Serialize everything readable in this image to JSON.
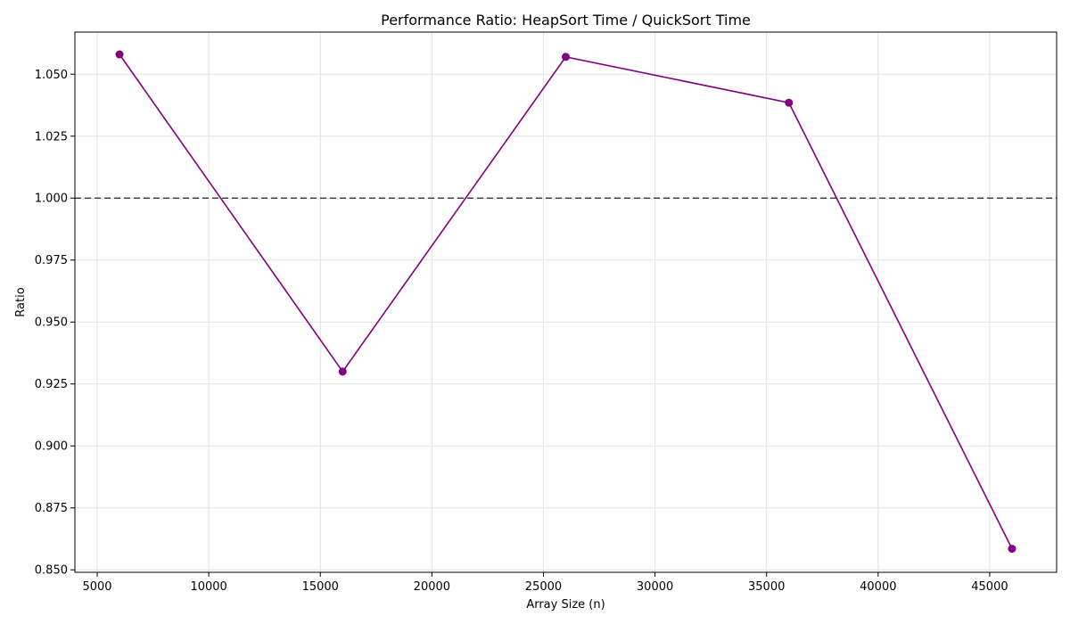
{
  "chart_data": {
    "type": "line",
    "title": "Performance Ratio: HeapSort Time / QuickSort Time",
    "xlabel": "Array Size (n)",
    "ylabel": "Ratio",
    "xlim": [
      4000,
      48000
    ],
    "ylim": [
      0.849,
      1.067
    ],
    "x_ticks": [
      5000,
      10000,
      15000,
      20000,
      25000,
      30000,
      35000,
      40000,
      45000
    ],
    "y_ticks": [
      0.85,
      0.875,
      0.9,
      0.925,
      0.95,
      0.975,
      1.0,
      1.025,
      1.05
    ],
    "y_tick_labels": [
      "0.850",
      "0.875",
      "0.900",
      "0.925",
      "0.950",
      "0.975",
      "1.000",
      "1.025",
      "1.050"
    ],
    "grid": true,
    "series": [
      {
        "x": [
          6000,
          16000,
          26000,
          36000,
          46000
        ],
        "y": [
          1.058,
          0.93,
          1.057,
          1.0385,
          0.8585
        ],
        "color": "#800080",
        "marker": "circle"
      }
    ],
    "reference_line": {
      "y": 1.0,
      "style": "dashed",
      "color": "#444444"
    }
  }
}
